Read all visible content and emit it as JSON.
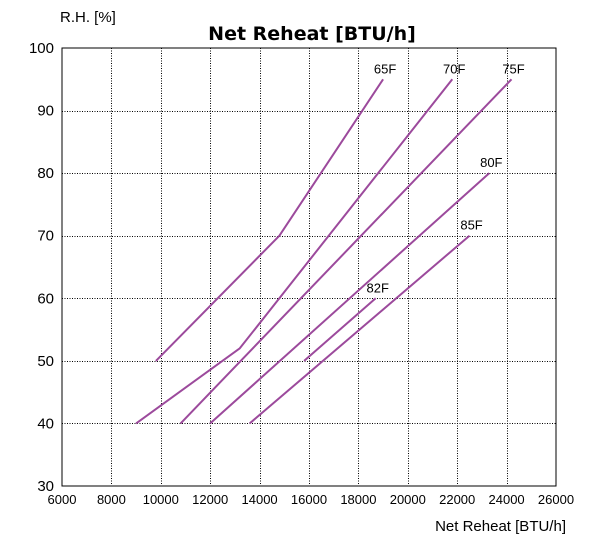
{
  "chart_data": {
    "type": "line",
    "title": "Net Reheat [BTU/h]",
    "xlabel": "Net Reheat [BTU/h]",
    "ylabel": "R.H. [%]",
    "xlim": [
      6000,
      26000
    ],
    "ylim": [
      30,
      100
    ],
    "x_ticks": [
      "6000",
      "8000",
      "10000",
      "12000",
      "14000",
      "16000",
      "18000",
      "20000",
      "22000",
      "24000",
      "26000"
    ],
    "y_ticks": [
      "30",
      "40",
      "50",
      "60",
      "70",
      "80",
      "90",
      "100"
    ],
    "x_tick_values": [
      6000,
      8000,
      10000,
      12000,
      14000,
      16000,
      18000,
      20000,
      22000,
      24000,
      26000
    ],
    "y_tick_values": [
      30,
      40,
      50,
      60,
      70,
      80,
      90,
      100
    ],
    "grid": true,
    "line_color": "#9c4a9c",
    "series": [
      {
        "name": "65F",
        "points": [
          [
            9800,
            50
          ],
          [
            14800,
            70
          ],
          [
            19000,
            95
          ]
        ]
      },
      {
        "name": "70F",
        "points": [
          [
            9000,
            40
          ],
          [
            13200,
            52
          ],
          [
            21800,
            95
          ]
        ]
      },
      {
        "name": "75F",
        "points": [
          [
            10800,
            40
          ],
          [
            24200,
            95
          ]
        ]
      },
      {
        "name": "80F",
        "points": [
          [
            12000,
            40
          ],
          [
            23300,
            80
          ]
        ]
      },
      {
        "name": "82F",
        "points": [
          [
            15800,
            50
          ],
          [
            18700,
            60
          ]
        ]
      },
      {
        "name": "85F",
        "points": [
          [
            13600,
            40
          ],
          [
            22500,
            70
          ]
        ]
      }
    ]
  }
}
